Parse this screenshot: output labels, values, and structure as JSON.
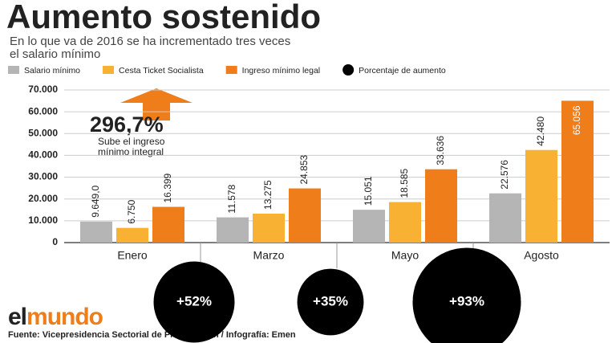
{
  "chart_data": {
    "type": "bar",
    "title": "Aumento sostenido",
    "subtitle": [
      "En lo que va de 2016 se ha incrementado tres veces",
      "el salario mínimo"
    ],
    "categories": [
      "Enero",
      "Marzo",
      "Mayo",
      "Agosto"
    ],
    "series": [
      {
        "name": "Salario mínimo",
        "color": "#b5b5b5",
        "values": [
          9649.0,
          11578,
          15051,
          22576
        ],
        "value_labels": [
          "9.649,0",
          "11.578",
          "15.051",
          "22.576"
        ]
      },
      {
        "name": "Cesta Ticket Socialista",
        "color": "#f8b133",
        "values": [
          6750,
          13275,
          18585,
          42480
        ],
        "value_labels": [
          "6.750",
          "13.275",
          "18.585",
          "42.480"
        ]
      },
      {
        "name": "Ingreso mínimo legal",
        "color": "#ef7d1a",
        "values": [
          16399,
          24853,
          33636,
          65056
        ],
        "value_labels": [
          "16.399",
          "24.853",
          "33.636",
          "65.056"
        ]
      }
    ],
    "increase": {
      "name": "Porcentaje de aumento",
      "color": "#000000",
      "values": [
        52,
        35,
        93
      ],
      "value_labels": [
        "+52%",
        "+35%",
        "+93%"
      ]
    },
    "ylim": [
      0,
      70000
    ],
    "yticks": [
      0,
      {
        "value": 10000,
        "label": "10.000"
      },
      {
        "value": 20000,
        "label": "20.000"
      },
      {
        "value": 30000,
        "label": "30.000"
      },
      {
        "value": 40000,
        "label": "40.000"
      },
      {
        "value": 50000,
        "label": "50.000"
      },
      {
        "value": 60000,
        "label": "60.000"
      },
      {
        "value": 70000,
        "label": "70.000"
      }
    ],
    "grid": true,
    "annotation": {
      "value": "296,7%",
      "text": [
        "Sube el ingreso",
        "mínimo integral"
      ]
    },
    "logo": [
      "el",
      "mundo"
    ],
    "source": "Fuente: Vicepresidencia Sectorial de Planificación / Infografía: Emen"
  }
}
